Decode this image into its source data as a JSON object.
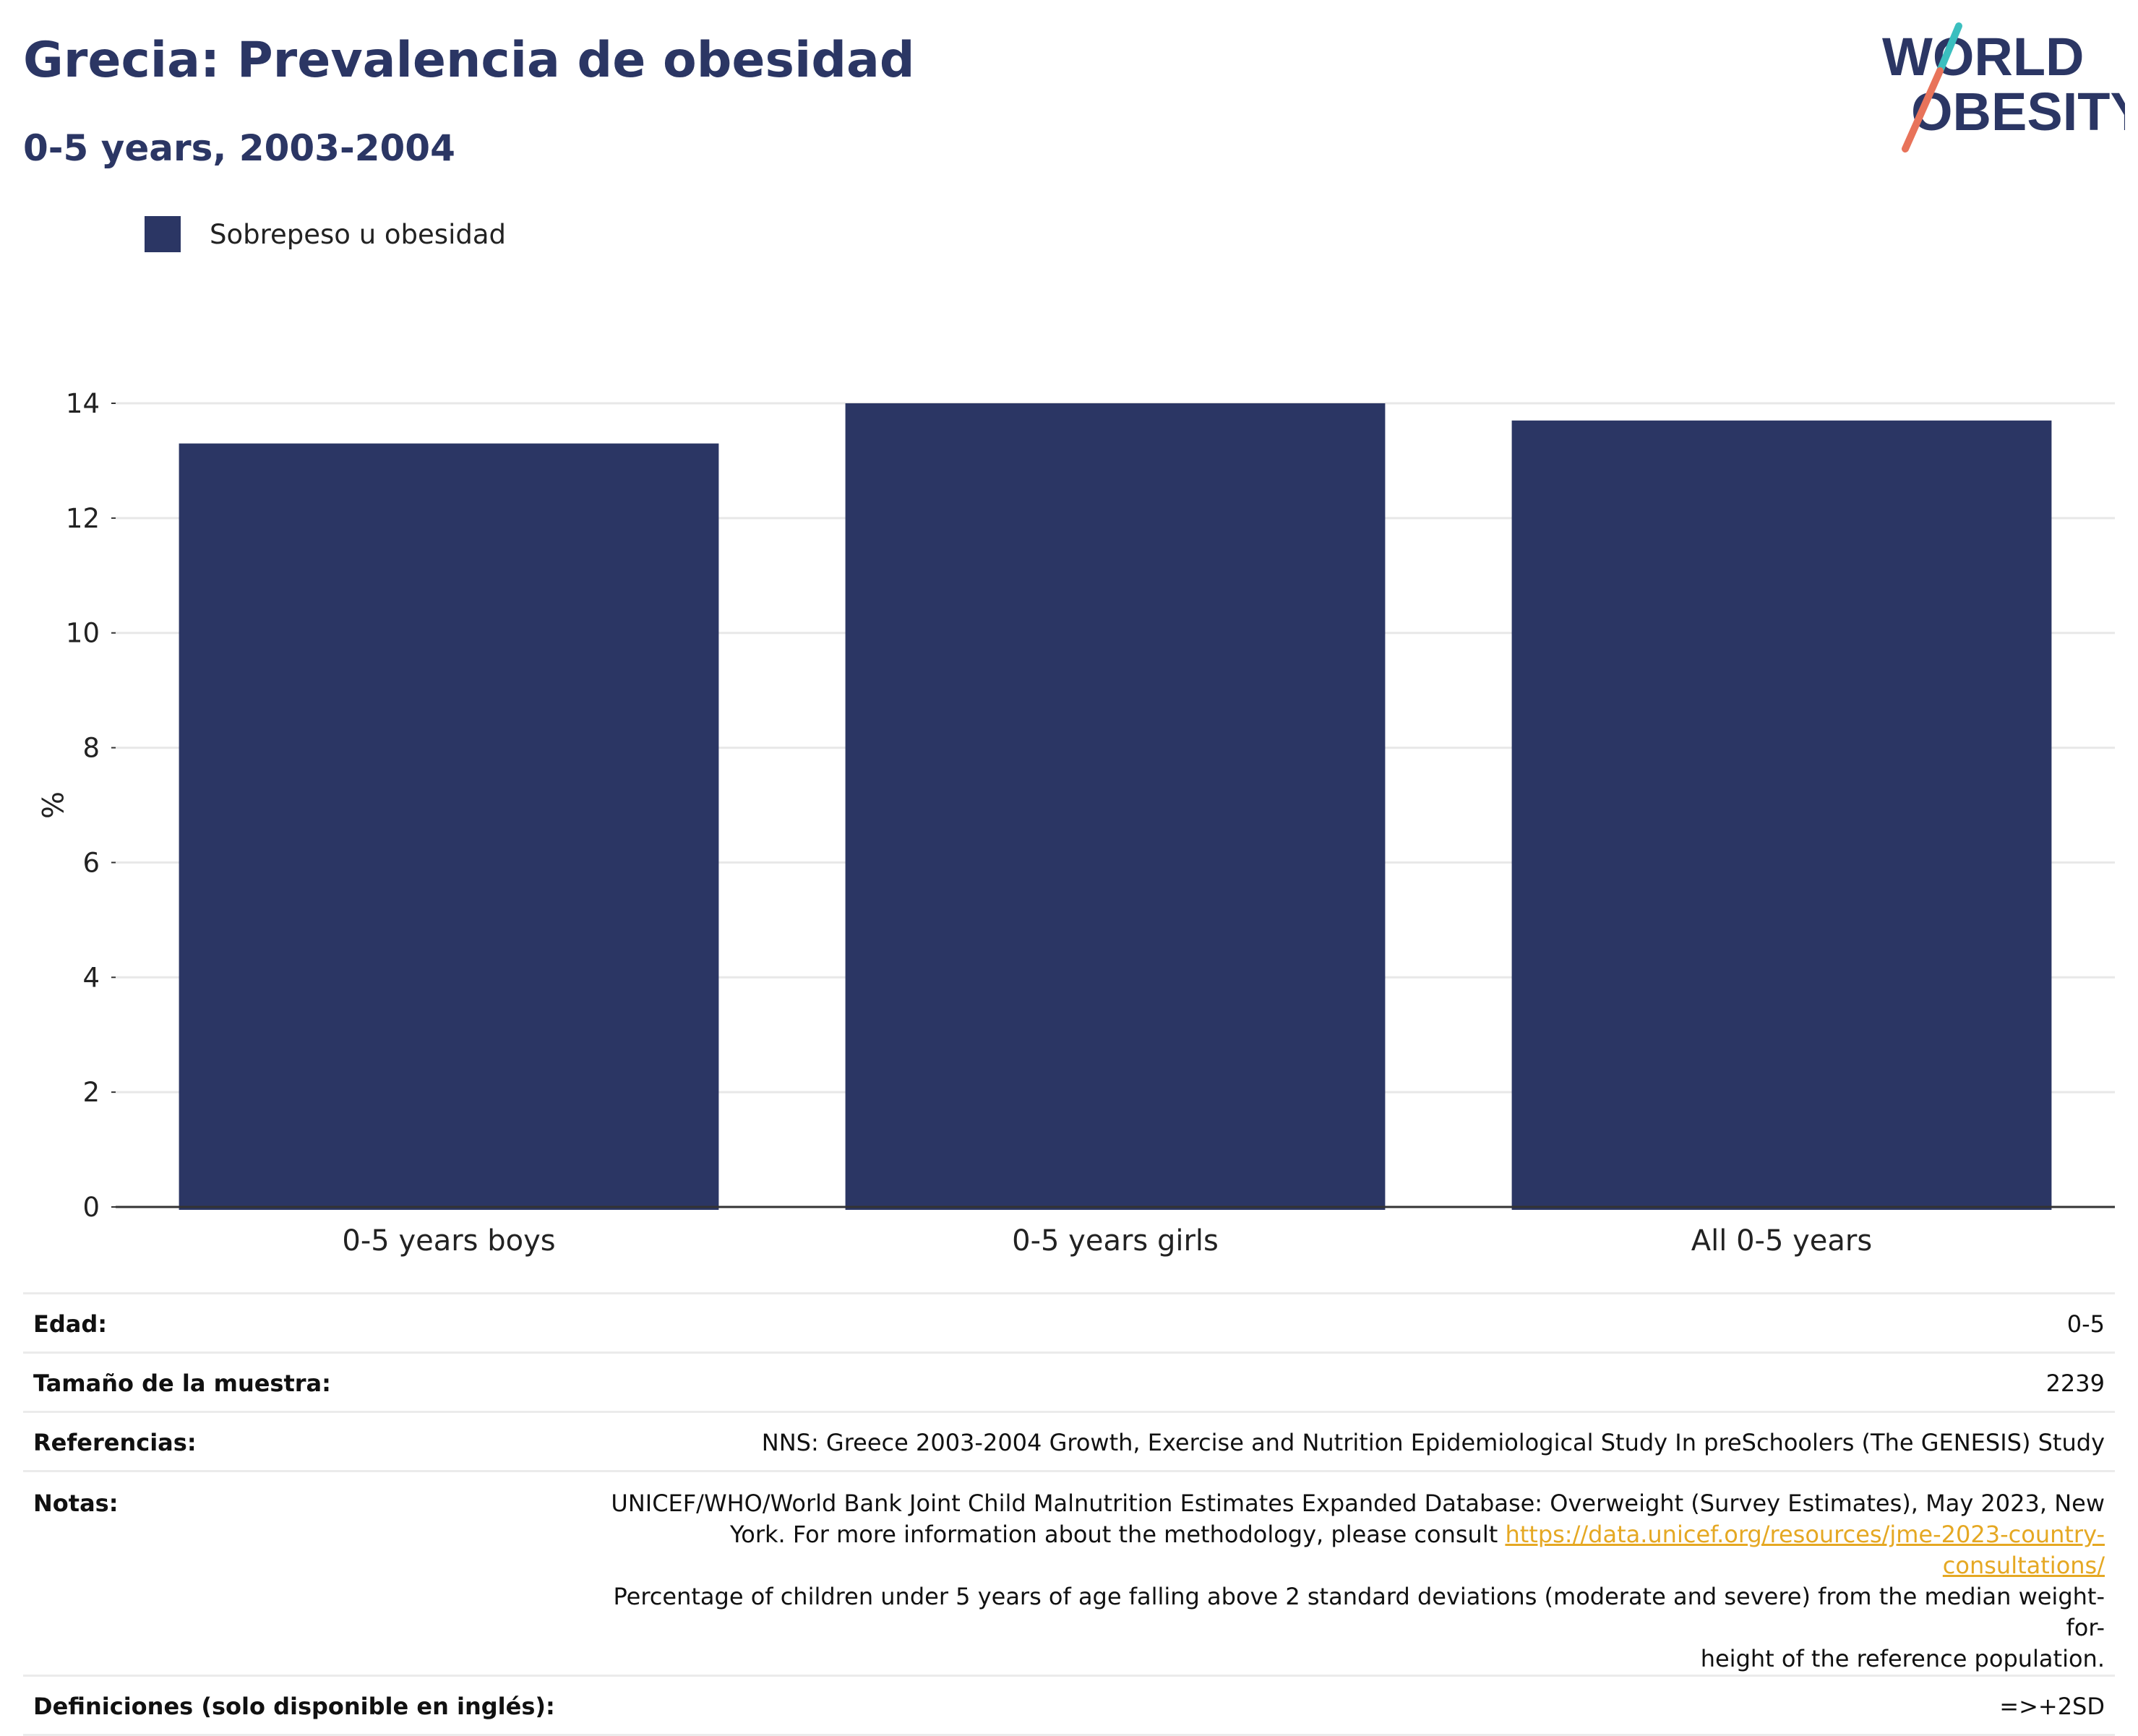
{
  "header": {
    "title": "Grecia: Prevalencia de obesidad",
    "subtitle": "0-5 years, 2003-2004"
  },
  "logo": {
    "line1": "WORLD",
    "line2": "OBESITY",
    "colors": {
      "navy": "#2b3664",
      "teal": "#3bbfbf",
      "coral": "#e8735a"
    }
  },
  "legend": {
    "items": [
      {
        "label": "Sobrepeso u obesidad",
        "color": "#2b3664"
      }
    ],
    "position": "top-left"
  },
  "chart_data": {
    "type": "bar",
    "title": "Grecia: Prevalencia de obesidad",
    "subtitle": "0-5 years, 2003-2004",
    "categories": [
      "0-5 years boys",
      "0-5 years girls",
      "All 0-5 years"
    ],
    "series": [
      {
        "name": "Sobrepeso u obesidad",
        "values": [
          13.3,
          14.0,
          13.7
        ],
        "color": "#2b3664"
      }
    ],
    "xlabel": "",
    "ylabel": "%",
    "ylim": [
      0,
      14
    ],
    "yticks": [
      0,
      2,
      4,
      6,
      8,
      10,
      12,
      14
    ],
    "grid": true,
    "legend_position": "top-left"
  },
  "info": {
    "age_label": "Edad:",
    "age_value": "0-5",
    "sample_label": "Tamaño de la muestra:",
    "sample_value": "2239",
    "refs_label": "Referencias:",
    "refs_value": "NNS: Greece 2003-2004 Growth, Exercise and Nutrition Epidemiological Study In preSchoolers (The GENESIS) Study",
    "notes_label": "Notas:",
    "notes_line1": "UNICEF/WHO/World Bank Joint Child Malnutrition Estimates Expanded Database: Overweight (Survey Estimates), May 2023, New",
    "notes_line2_pre": "York. For more information about the methodology, please consult ",
    "notes_link": "https://data.unicef.org/resources/jme-2023-country-consultations/",
    "notes_line3": "Percentage of children under 5 years of age falling above 2 standard deviations (moderate and severe) from the median weight-for-",
    "notes_line4": "height of the reference population.",
    "defs_label": "Definiciones (solo disponible en inglés):",
    "defs_value": "=>+2SD"
  }
}
